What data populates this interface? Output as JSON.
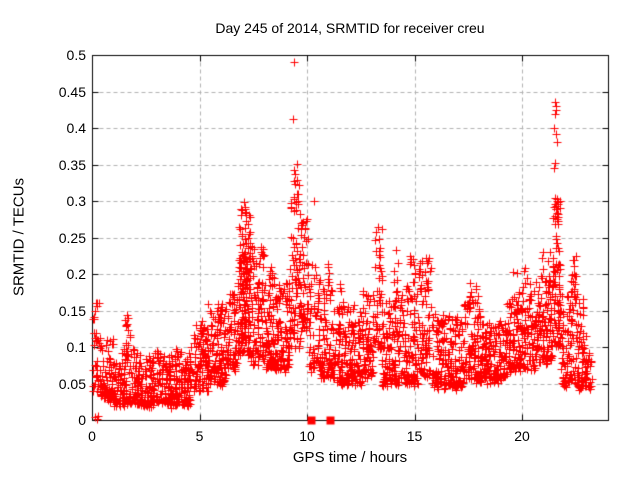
{
  "title": "Day 245 of 2014, SRMTID for receiver creu",
  "chart_data": {
    "type": "scatter",
    "title": "Day 245 of 2014, SRMTID for receiver creu",
    "xlabel": "GPS time / hours",
    "ylabel": "SRMTID / TECUs",
    "xlim": [
      0,
      24
    ],
    "ylim": [
      0,
      0.5
    ],
    "xticks": [
      {
        "v": 0,
        "label": "0"
      },
      {
        "v": 5,
        "label": "5"
      },
      {
        "v": 10,
        "label": "10"
      },
      {
        "v": 15,
        "label": "15"
      },
      {
        "v": 20,
        "label": "20"
      }
    ],
    "yticks": [
      {
        "v": 0,
        "label": "0"
      },
      {
        "v": 0.05,
        "label": "0.05"
      },
      {
        "v": 0.1,
        "label": "0.1"
      },
      {
        "v": 0.15,
        "label": "0.15"
      },
      {
        "v": 0.2,
        "label": "0.2"
      },
      {
        "v": 0.25,
        "label": "0.25"
      },
      {
        "v": 0.3,
        "label": "0.3"
      },
      {
        "v": 0.35,
        "label": "0.35"
      },
      {
        "v": 0.4,
        "label": "0.4"
      },
      {
        "v": 0.45,
        "label": "0.45"
      },
      {
        "v": 0.5,
        "label": "0.5"
      }
    ],
    "grid": true,
    "legend": "none",
    "marker": "plus",
    "marker_color": "#ff0000",
    "grid_color": "#b0b0b0",
    "frame_color": "#000000",
    "background_color": "#ffffff",
    "seed": 20140245,
    "series_note": "Dense red '+' scatter of SRMTID vs GPS time; quiet morning band near 0.05, activity peaks near hours 7 (0.30), 9.4 (0.49 max), 13.3 (0.27) and 21.5 (0.435), data ends near hour 23.2",
    "band_segments_comment": "each segment = [t_start_h, t_end_h, n_points, y_min_TECU, y_max_TECU, skew_exponent]",
    "segments": [
      [
        0.05,
        0.35,
        32,
        0.04,
        0.17,
        1.1
      ],
      [
        0.35,
        1.0,
        95,
        0.03,
        0.115,
        1.8
      ],
      [
        1.0,
        2.2,
        150,
        0.022,
        0.1,
        1.9
      ],
      [
        1.55,
        1.8,
        12,
        0.1,
        0.142,
        1.0
      ],
      [
        2.2,
        4.6,
        300,
        0.022,
        0.095,
        1.8
      ],
      [
        4.6,
        5.4,
        90,
        0.04,
        0.125,
        1.6
      ],
      [
        5.0,
        5.25,
        8,
        0.12,
        0.148,
        1.0
      ],
      [
        5.4,
        6.3,
        110,
        0.05,
        0.155,
        1.6
      ],
      [
        5.85,
        6.05,
        6,
        0.145,
        0.168,
        1.0
      ],
      [
        6.3,
        6.8,
        70,
        0.07,
        0.185,
        1.5
      ],
      [
        6.8,
        7.4,
        115,
        0.09,
        0.3,
        1.7
      ],
      [
        6.85,
        7.35,
        55,
        0.13,
        0.26,
        1.2
      ],
      [
        7.4,
        8.0,
        85,
        0.08,
        0.24,
        1.9
      ],
      [
        8.0,
        9.2,
        170,
        0.07,
        0.19,
        1.9
      ],
      [
        8.25,
        8.5,
        8,
        0.17,
        0.21,
        1.0
      ],
      [
        9.2,
        9.7,
        70,
        0.1,
        0.3,
        1.5
      ],
      [
        9.35,
        9.62,
        14,
        0.285,
        0.352,
        1.0
      ],
      [
        9.7,
        10.1,
        55,
        0.12,
        0.275,
        1.5
      ],
      [
        10.1,
        10.6,
        55,
        0.07,
        0.215,
        1.7
      ],
      [
        10.6,
        11.3,
        90,
        0.06,
        0.185,
        1.8
      ],
      [
        10.95,
        11.12,
        6,
        0.18,
        0.215,
        1.0
      ],
      [
        11.3,
        12.6,
        175,
        0.05,
        0.165,
        1.8
      ],
      [
        11.5,
        11.75,
        6,
        0.15,
        0.19,
        1.0
      ],
      [
        12.6,
        13.1,
        65,
        0.06,
        0.18,
        1.7
      ],
      [
        13.1,
        13.5,
        48,
        0.1,
        0.268,
        1.5
      ],
      [
        13.5,
        14.3,
        100,
        0.05,
        0.165,
        1.8
      ],
      [
        13.95,
        14.25,
        10,
        0.16,
        0.25,
        1.2
      ],
      [
        14.3,
        15.2,
        115,
        0.05,
        0.185,
        1.8
      ],
      [
        14.6,
        15.05,
        10,
        0.17,
        0.225,
        1.2
      ],
      [
        15.2,
        15.8,
        75,
        0.06,
        0.225,
        1.5
      ],
      [
        15.8,
        17.3,
        185,
        0.045,
        0.145,
        1.8
      ],
      [
        17.3,
        18.05,
        90,
        0.055,
        0.17,
        1.7
      ],
      [
        17.55,
        17.95,
        6,
        0.165,
        0.195,
        1.0
      ],
      [
        18.05,
        19.3,
        165,
        0.055,
        0.135,
        1.8
      ],
      [
        19.3,
        20.6,
        165,
        0.07,
        0.175,
        1.7
      ],
      [
        19.45,
        20.45,
        9,
        0.17,
        0.215,
        1.0
      ],
      [
        20.6,
        21.4,
        115,
        0.08,
        0.19,
        1.6
      ],
      [
        20.85,
        21.35,
        10,
        0.18,
        0.232,
        1.0
      ],
      [
        21.4,
        21.8,
        75,
        0.1,
        0.3,
        1.5
      ],
      [
        21.48,
        21.68,
        12,
        0.283,
        0.305,
        1.0
      ],
      [
        21.8,
        22.6,
        100,
        0.05,
        0.2,
        1.9
      ],
      [
        22.25,
        22.5,
        6,
        0.19,
        0.222,
        1.0
      ],
      [
        22.6,
        23.0,
        60,
        0.045,
        0.17,
        1.8
      ],
      [
        23.0,
        23.25,
        18,
        0.04,
        0.105,
        1.5
      ]
    ],
    "outlier_points": [
      [
        0.15,
        0.004
      ],
      [
        0.22,
        0.001
      ],
      [
        0.28,
        0.006
      ],
      [
        9.38,
        0.49
      ],
      [
        9.33,
        0.412
      ],
      [
        10.32,
        0.3
      ],
      [
        7.05,
        0.298
      ],
      [
        7.1,
        0.292
      ],
      [
        6.98,
        0.287
      ],
      [
        13.3,
        0.265
      ],
      [
        15.55,
        0.222
      ],
      [
        15.6,
        0.215
      ],
      [
        21.55,
        0.435
      ],
      [
        21.6,
        0.43
      ],
      [
        21.57,
        0.424
      ],
      [
        21.52,
        0.419
      ],
      [
        21.5,
        0.4
      ],
      [
        21.56,
        0.392
      ],
      [
        21.62,
        0.381
      ],
      [
        21.53,
        0.352
      ],
      [
        21.49,
        0.345
      ],
      [
        21.58,
        0.252
      ],
      [
        21.64,
        0.242
      ]
    ],
    "square_markers": [
      [
        10.2,
        0
      ],
      [
        11.05,
        0
      ]
    ]
  }
}
